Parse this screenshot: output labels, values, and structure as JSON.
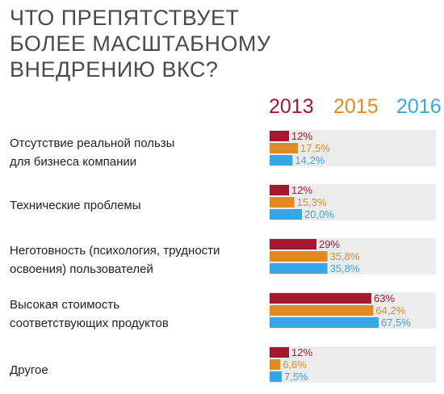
{
  "title_lines": [
    "ЧТО ПРЕПЯТСТВУЕТ",
    "БОЛЕЕ МАСШТАБНОМУ",
    "ВНЕДРЕНИЮ ВКС?"
  ],
  "colors": {
    "2013": "#a4182f",
    "2015": "#e08a22",
    "2016": "#37a6e6",
    "track": "#ececec",
    "title": "#4a4a4a",
    "text": "#222222"
  },
  "chart_data": {
    "type": "bar",
    "orientation": "horizontal",
    "title": "ЧТО ПРЕПЯТСТВУЕТ БОЛЕЕ МАСШТАБНОМУ ВНЕДРЕНИЮ ВКС?",
    "legend_position": "top-right",
    "xlim": [
      0,
      100
    ],
    "grid": false,
    "categories": [
      [
        "Отсутствие реальной пользы",
        "для бизнеса компании"
      ],
      [
        "Технические проблемы"
      ],
      [
        "Неготовность (психология, трудности",
        "освоения) пользователей"
      ],
      [
        "Высокая стоимость",
        "соответствующих продуктов"
      ],
      [
        "Другое"
      ]
    ],
    "series": [
      {
        "name": "2013",
        "values": [
          12,
          12,
          29,
          63,
          12
        ],
        "labels": [
          "12%",
          "12%",
          "29%",
          "63%",
          "12%"
        ]
      },
      {
        "name": "2015",
        "values": [
          17.5,
          15.3,
          35.8,
          64.2,
          6.6
        ],
        "labels": [
          "17,5%",
          "15,3%",
          "35,8%",
          "64,2%",
          "6,6%"
        ]
      },
      {
        "name": "2016",
        "values": [
          14.2,
          20.0,
          35.8,
          67.5,
          7.5
        ],
        "labels": [
          "14,2%",
          "20,0%",
          "35,8%",
          "67,5%",
          "7,5%"
        ]
      }
    ]
  }
}
